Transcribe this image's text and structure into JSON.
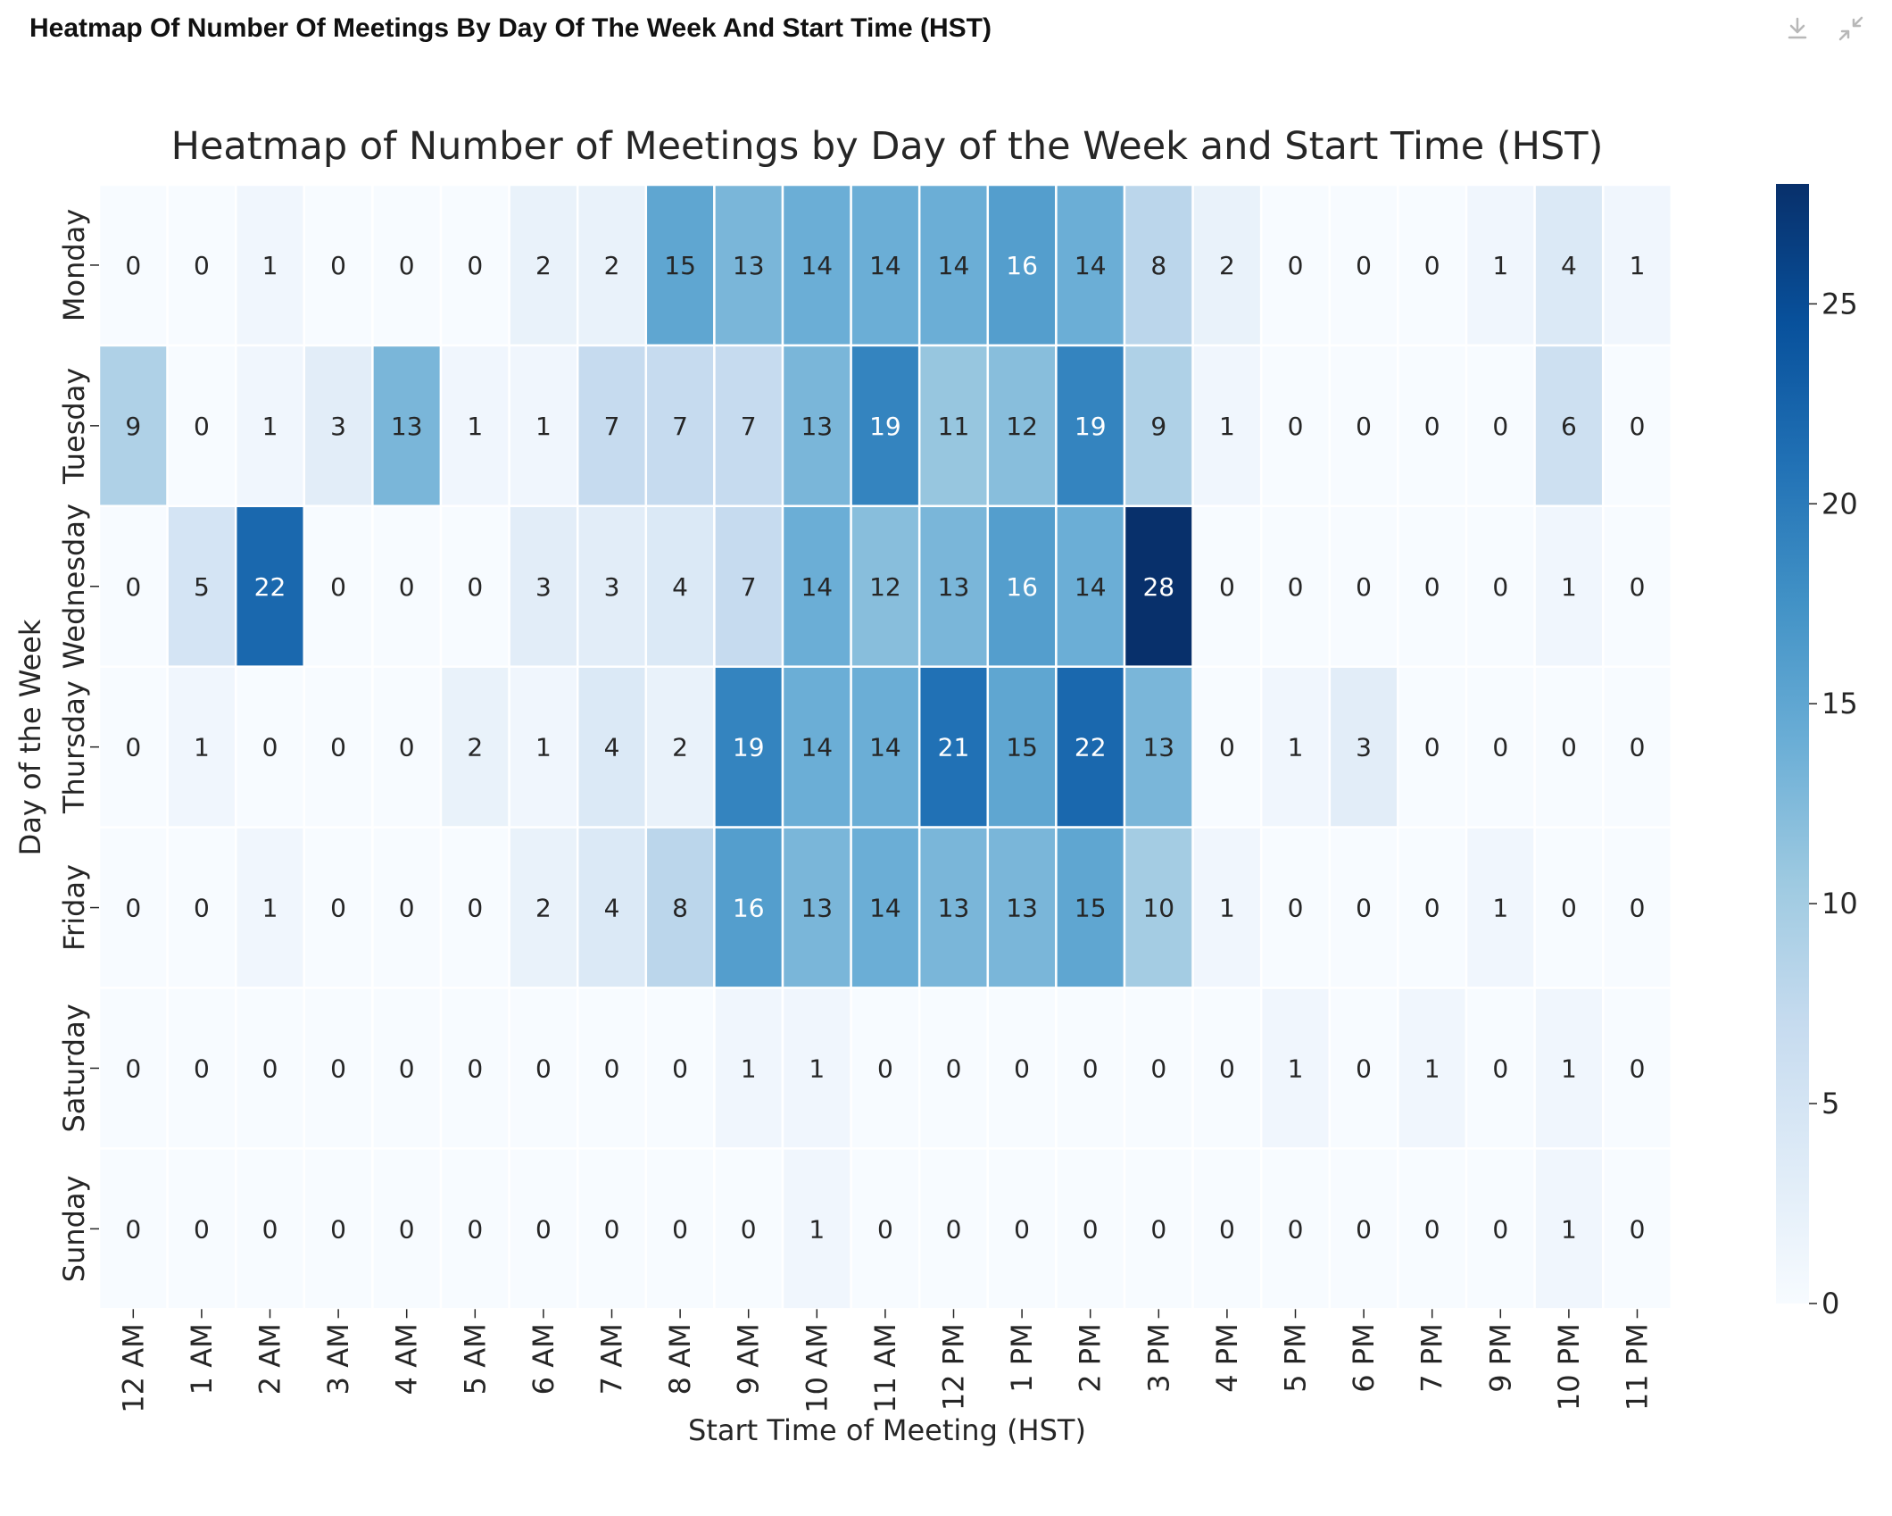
{
  "panel": {
    "title": "Heatmap Of Number Of Meetings By Day Of The Week And Start Time (HST)",
    "download_icon": "download-icon",
    "collapse_icon": "collapse-icon"
  },
  "chart_data": {
    "type": "heatmap",
    "title": "Heatmap of Number of Meetings by Day of the Week and Start Time (HST)",
    "xlabel": "Start Time of Meeting (HST)",
    "ylabel": "Day of the Week",
    "x_categories": [
      "12 AM",
      "1 AM",
      "2 AM",
      "3 AM",
      "4 AM",
      "5 AM",
      "6 AM",
      "7 AM",
      "8 AM",
      "9 AM",
      "10 AM",
      "11 AM",
      "12 PM",
      "1 PM",
      "2 PM",
      "3 PM",
      "4 PM",
      "5 PM",
      "6 PM",
      "7 PM",
      "9 PM",
      "10 PM",
      "11 PM"
    ],
    "y_categories": [
      "Monday",
      "Tuesday",
      "Wednesday",
      "Thursday",
      "Friday",
      "Saturday",
      "Sunday"
    ],
    "values": [
      [
        0,
        0,
        1,
        0,
        0,
        0,
        2,
        2,
        15,
        13,
        14,
        14,
        14,
        16,
        14,
        8,
        2,
        0,
        0,
        0,
        1,
        4,
        1
      ],
      [
        9,
        0,
        1,
        3,
        13,
        1,
        1,
        7,
        7,
        7,
        13,
        19,
        11,
        12,
        19,
        9,
        1,
        0,
        0,
        0,
        0,
        6,
        0
      ],
      [
        0,
        5,
        22,
        0,
        0,
        0,
        3,
        3,
        4,
        7,
        14,
        12,
        13,
        16,
        14,
        28,
        0,
        0,
        0,
        0,
        0,
        1,
        0
      ],
      [
        0,
        1,
        0,
        0,
        0,
        2,
        1,
        4,
        2,
        19,
        14,
        14,
        21,
        15,
        22,
        13,
        0,
        1,
        3,
        0,
        0,
        0,
        0
      ],
      [
        0,
        0,
        1,
        0,
        0,
        0,
        2,
        4,
        8,
        16,
        13,
        14,
        13,
        13,
        15,
        10,
        1,
        0,
        0,
        0,
        1,
        0,
        0
      ],
      [
        0,
        0,
        0,
        0,
        0,
        0,
        0,
        0,
        0,
        1,
        1,
        0,
        0,
        0,
        0,
        0,
        0,
        1,
        0,
        1,
        0,
        1,
        0
      ],
      [
        0,
        0,
        0,
        0,
        0,
        0,
        0,
        0,
        0,
        0,
        1,
        0,
        0,
        0,
        0,
        0,
        0,
        0,
        0,
        0,
        0,
        1,
        0
      ]
    ],
    "colorbar": {
      "range": [
        0,
        28
      ],
      "ticks": [
        0,
        5,
        10,
        15,
        20,
        25
      ]
    },
    "colormap": "Blues",
    "annotated": true,
    "grid": false
  }
}
